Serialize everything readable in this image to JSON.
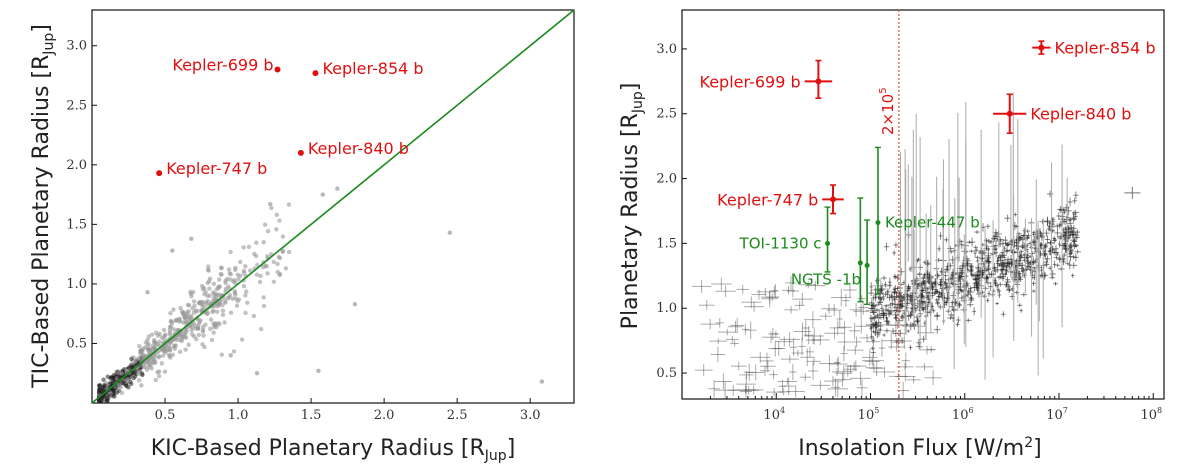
{
  "colors": {
    "highlight": "#e01010",
    "green": "#1c8a1c",
    "scatter": "#9a9a9a",
    "scatter_dark": "#222222",
    "threshold": "#e05050"
  },
  "chart_data": [
    {
      "type": "scatter",
      "xlabel": "KIC-Based Planetary Radius [R",
      "ylabel": "TIC-Based Planetary Radius [R",
      "label_sub": "Jup",
      "xlim": [
        0,
        3.3
      ],
      "ylim": [
        0,
        3.3
      ],
      "xticks": [
        0.5,
        1.0,
        1.5,
        2.0,
        2.5,
        3.0
      ],
      "yticks": [
        0.5,
        1.0,
        1.5,
        2.0,
        2.5,
        3.0
      ],
      "tick_labels": [
        "0.5",
        "1.0",
        "1.5",
        "2.0",
        "2.5",
        "3.0"
      ],
      "one_to_one_line": true,
      "highlighted": [
        {
          "name": "Kepler-699 b",
          "x": 1.27,
          "y": 2.8
        },
        {
          "name": "Kepler-854 b",
          "x": 1.53,
          "y": 2.77
        },
        {
          "name": "Kepler-840 b",
          "x": 1.43,
          "y": 2.1
        },
        {
          "name": "Kepler-747 b",
          "x": 0.46,
          "y": 1.93
        }
      ],
      "outliers": [
        {
          "x": 3.08,
          "y": 0.18
        },
        {
          "x": 2.45,
          "y": 1.43
        },
        {
          "x": 1.8,
          "y": 0.83
        },
        {
          "x": 1.55,
          "y": 0.27
        },
        {
          "x": 0.95,
          "y": 0.4
        },
        {
          "x": 1.13,
          "y": 0.25
        },
        {
          "x": 1.68,
          "y": 1.8
        },
        {
          "x": 1.58,
          "y": 1.75
        },
        {
          "x": 1.22,
          "y": 1.67
        },
        {
          "x": 0.68,
          "y": 1.38
        },
        {
          "x": 0.38,
          "y": 0.93
        },
        {
          "x": 0.55,
          "y": 1.28
        }
      ]
    },
    {
      "type": "scatter",
      "xlabel": "Insolation Flux [W/m",
      "xlabel_sup": "2",
      "ylabel": "Planetary Radius [R",
      "label_sub": "Jup",
      "xscale": "log",
      "xlim": [
        1000,
        130000000
      ],
      "ylim": [
        0.3,
        3.3
      ],
      "xticks": [
        10000,
        100000,
        1000000,
        10000000,
        100000000
      ],
      "xtick_labels": [
        "10",
        "10",
        "10",
        "10",
        "10"
      ],
      "xtick_exps": [
        "4",
        "5",
        "6",
        "7",
        "8"
      ],
      "yticks": [
        0.5,
        1.0,
        1.5,
        2.0,
        2.5,
        3.0
      ],
      "ytick_labels": [
        "0.5",
        "1.0",
        "1.5",
        "2.0",
        "2.5",
        "3.0"
      ],
      "threshold": {
        "x": 200000,
        "label": "2×10",
        "label_sup": "5"
      },
      "highlighted": [
        {
          "name": "Kepler-854 b",
          "x": 6500000,
          "y": 3.01,
          "ylo": 0.05,
          "yhi": 0.05,
          "xlo_f": 1.25,
          "xhi_f": 1.25
        },
        {
          "name": "Kepler-699 b",
          "x": 28000,
          "y": 2.75,
          "ylo": 0.13,
          "yhi": 0.16,
          "xlo_f": 1.4,
          "xhi_f": 1.4
        },
        {
          "name": "Kepler-840 b",
          "x": 3000000,
          "y": 2.5,
          "ylo": 0.15,
          "yhi": 0.15,
          "xlo_f": 1.5,
          "xhi_f": 1.5
        },
        {
          "name": "Kepler-747 b",
          "x": 40000,
          "y": 1.84,
          "ylo": 0.11,
          "yhi": 0.11,
          "xlo_f": 1.3,
          "xhi_f": 1.3
        }
      ],
      "green": [
        {
          "name": "TOI-1130 c",
          "x": 35000,
          "y": 1.5,
          "ylo": 0.22,
          "yhi": 0.28
        },
        {
          "name": "Kepler-447 b",
          "x": 120000,
          "y": 1.66,
          "ylo": 0.55,
          "yhi": 0.58
        },
        {
          "name": "NGTS -1b",
          "x": 92000,
          "y": 1.33,
          "ylo": 0.3,
          "yhi": 0.35
        },
        {
          "name": "",
          "x": 78000,
          "y": 1.35,
          "ylo": 0.3,
          "yhi": 0.5
        }
      ]
    }
  ]
}
